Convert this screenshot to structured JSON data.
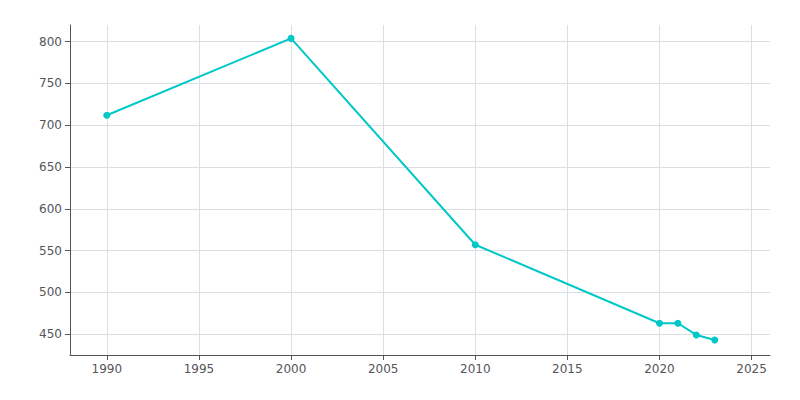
{
  "chart_data": {
    "type": "line",
    "x": [
      1990,
      2000,
      2010,
      2020,
      2021,
      2022,
      2023
    ],
    "values": [
      712,
      804,
      557,
      463,
      463,
      449,
      443
    ],
    "color": "#00C8C8",
    "marker": "circle",
    "xlim": [
      1988,
      2026
    ],
    "ylim": [
      425,
      820
    ],
    "xticks": [
      1990,
      1995,
      2000,
      2005,
      2010,
      2015,
      2020,
      2025
    ],
    "yticks": [
      450,
      500,
      550,
      600,
      650,
      700,
      750,
      800
    ],
    "grid": true
  }
}
